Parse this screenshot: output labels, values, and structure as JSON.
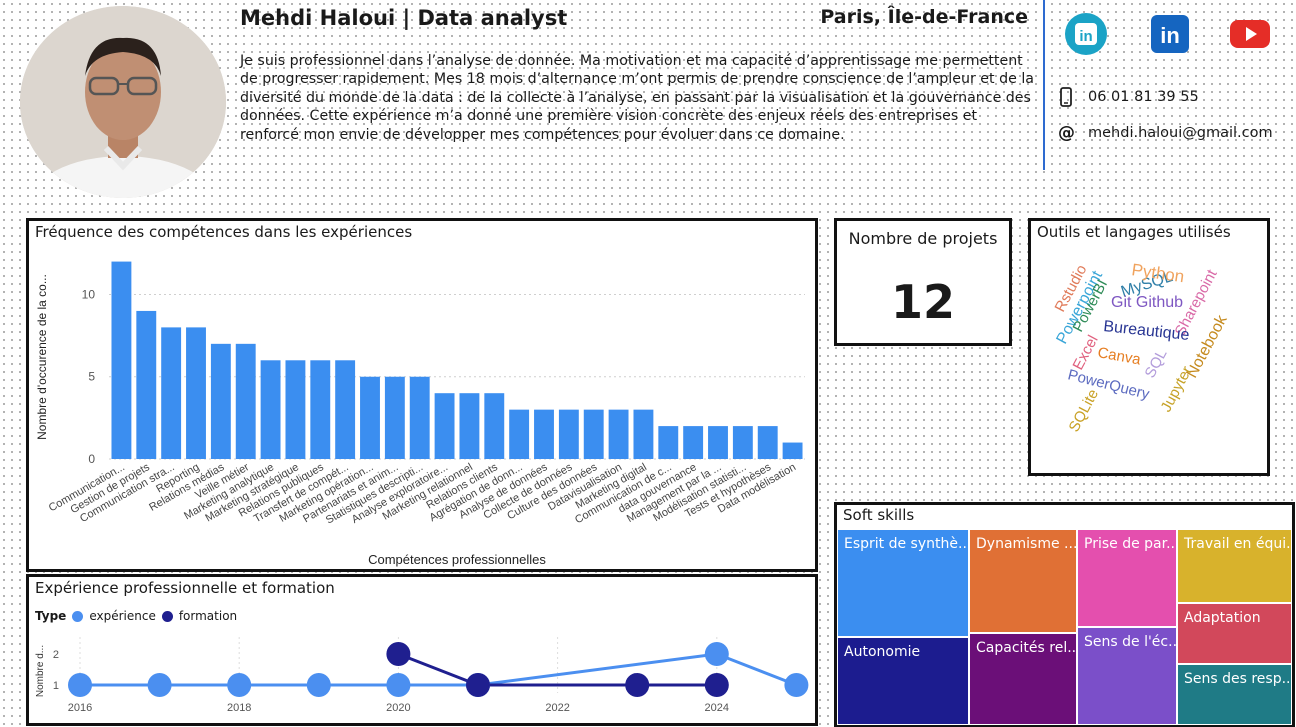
{
  "header": {
    "name": "Mehdi Haloui | Data analyst",
    "location": "Paris, Île-de-France",
    "bio": "Je suis professionnel dans l’analyse de donnée. Ma motivation et ma capacité d’apprentissage me permettent de progresser rapidement. Mes 18 mois d’alternance m’ont permis de prendre conscience de l’ampleur et de la diversité du monde de la data : de la collecte à l’analyse, en passant par la visualisation et la gouvernance des données. Cette expérience m’a donné une première vision concrète des enjeux réels des entreprises et renforcé mon envie de développer mes compétences pour évoluer dans ce domaine."
  },
  "social": {
    "linkedin1_icon": "linkedin-icon",
    "linkedin2_icon": "linkedin-icon",
    "youtube_icon": "youtube-icon",
    "colors": {
      "linkedin1": "#1ba3c6",
      "linkedin2": "#1565c0",
      "youtube": "#e52d27"
    }
  },
  "contact": {
    "phone": "06 01 81 39 55",
    "email": "mehdi.haloui@gmail.com",
    "phone_icon": "phone-icon",
    "email_icon": "at-icon"
  },
  "skills_chart": {
    "title": "Fréquence des compétences dans les expériences",
    "xlabel": "Compétences professionnelles",
    "ylabel": "Nombre d'occurence de la co..."
  },
  "kpi": {
    "title": "Nombre de projets",
    "value": "12"
  },
  "tools": {
    "title": "Outils et langages utilisés",
    "words": [
      {
        "text": "Rstudio",
        "color": "#e07b5a"
      },
      {
        "text": "Powerpoint",
        "color": "#3aa6d8"
      },
      {
        "text": "PowerBI",
        "color": "#2e8b57"
      },
      {
        "text": "MySQL",
        "color": "#2f7fa8"
      },
      {
        "text": "Python",
        "color": "#f0a35e"
      },
      {
        "text": "Git Github",
        "color": "#7e57c2"
      },
      {
        "text": "Sharepoint",
        "color": "#d96aa7"
      },
      {
        "text": "Bureautique",
        "color": "#283593"
      },
      {
        "text": "Notebook",
        "color": "#c58a1e"
      },
      {
        "text": "Excel",
        "color": "#e0607e"
      },
      {
        "text": "Canva",
        "color": "#e67e22"
      },
      {
        "text": "SQL",
        "color": "#b39ddb"
      },
      {
        "text": "Jupyter",
        "color": "#c6a227"
      },
      {
        "text": "PowerQuery",
        "color": "#5c6bc0"
      },
      {
        "text": "SQLite",
        "color": "#c9a227"
      }
    ]
  },
  "experience": {
    "title": "Expérience professionnelle et formation",
    "legend_title": "Type",
    "legend": [
      "expérience",
      "formation"
    ],
    "ylabel": "Nombre d...",
    "colors": {
      "experience": "#4b8ff0",
      "formation": "#1f1f8f"
    }
  },
  "soft_skills": {
    "title": "Soft skills",
    "items": [
      {
        "label": "Esprit de synthè...",
        "color": "#3b8ef0"
      },
      {
        "label": "Autonomie",
        "color": "#1c1c8f"
      },
      {
        "label": "Dynamisme ...",
        "color": "#e07035"
      },
      {
        "label": "Capacités rel...",
        "color": "#6b0f78"
      },
      {
        "label": "Prise de par...",
        "color": "#e44fae"
      },
      {
        "label": "Sens de l'éc...",
        "color": "#7b4fc9"
      },
      {
        "label": "Travail en équi...",
        "color": "#d8b22c"
      },
      {
        "label": "Adaptation",
        "color": "#d2485b"
      },
      {
        "label": "Sens des resp...",
        "color": "#1f7b86"
      }
    ]
  },
  "chart_data": [
    {
      "type": "bar",
      "title": "Fréquence des compétences dans les expériences",
      "xlabel": "Compétences professionnelles",
      "ylabel": "Nombre d'occurence de la co...",
      "ylim": [
        0,
        12
      ],
      "yticks": [
        0,
        5,
        10
      ],
      "color": "#3b8ef0",
      "categories": [
        "Communication...",
        "Gestion de projets",
        "Communication stra...",
        "Reporting",
        "Relations médias",
        "Veille métier",
        "Marketing analytique",
        "Marketing stratégique",
        "Relations publiques",
        "Transfert de compét...",
        "Marketing opération...",
        "Partenariats et anim...",
        "Statistiques descripti...",
        "Analyse exploratoire...",
        "Marketing relationnel",
        "Relations clients",
        "Agrégation de donn...",
        "Analyse de données",
        "Collecte de données",
        "Culture des données",
        "Datavisualisation",
        "Marketing digital",
        "Communication de c...",
        "data gouvernance",
        "Management par la ...",
        "Modélisation statisti...",
        "Tests et hypothèses",
        "Data modélisation"
      ],
      "values": [
        12,
        9,
        8,
        8,
        7,
        7,
        6,
        6,
        6,
        6,
        5,
        5,
        5,
        4,
        4,
        4,
        3,
        3,
        3,
        3,
        3,
        3,
        2,
        2,
        2,
        2,
        2,
        1
      ]
    },
    {
      "type": "line",
      "title": "Expérience professionnelle et formation",
      "ylabel": "Nombre d...",
      "xticks": [
        2016,
        2018,
        2020,
        2022,
        2024
      ],
      "yticks": [
        1,
        2
      ],
      "series": [
        {
          "name": "expérience",
          "x": [
            2016,
            2017,
            2018,
            2019,
            2020,
            2021,
            2024,
            2025
          ],
          "y": [
            1,
            1,
            1,
            1,
            1,
            1,
            2,
            1
          ]
        },
        {
          "name": "formation",
          "x": [
            2020,
            2021,
            2023,
            2024
          ],
          "y": [
            2,
            1,
            1,
            1
          ]
        }
      ]
    }
  ]
}
